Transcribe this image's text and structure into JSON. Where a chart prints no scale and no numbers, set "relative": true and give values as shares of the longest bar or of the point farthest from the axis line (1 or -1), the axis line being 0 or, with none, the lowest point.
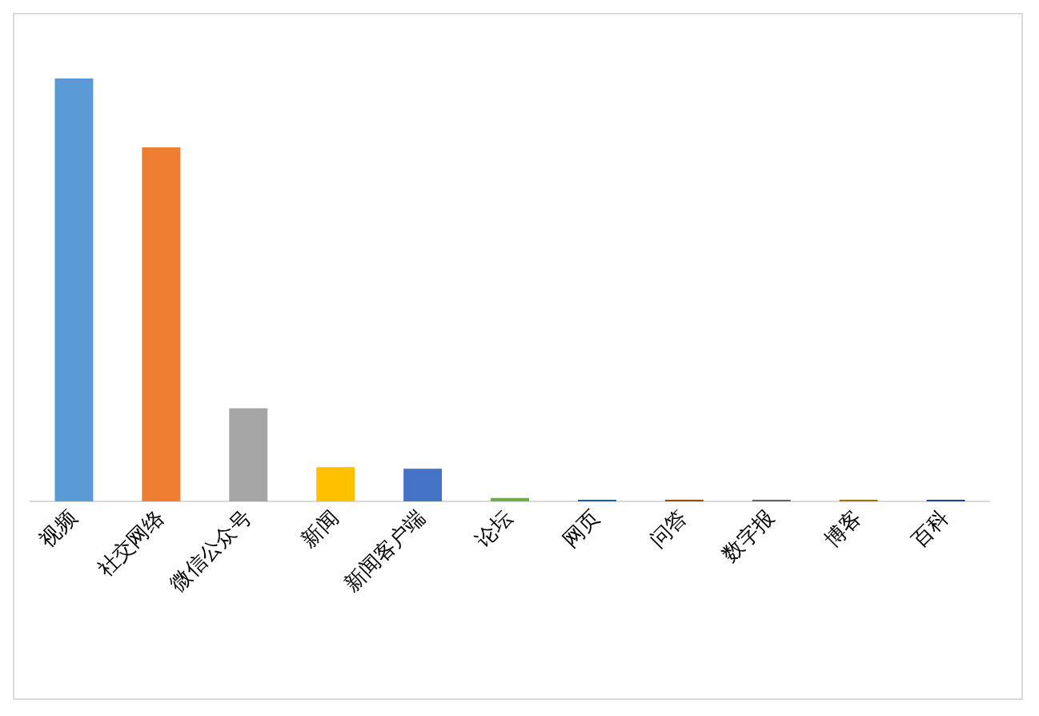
{
  "chart_data": {
    "type": "bar",
    "relative": true,
    "grid": false,
    "legend": false,
    "categories": [
      "视频",
      "社交网络",
      "微信公众号",
      "新闻",
      "新闻客户端",
      "论坛",
      "网页",
      "问答",
      "数字报",
      "博客",
      "百科"
    ],
    "values": [
      1,
      0.837,
      0.22,
      0.081,
      0.077,
      0.008,
      0.004,
      0.004,
      0.004,
      0.004,
      0.004
    ],
    "colors": [
      "#5b9bd5",
      "#ed7d31",
      "#a5a5a5",
      "#ffc000",
      "#4472c4",
      "#70ad47",
      "#255e91",
      "#9e480e",
      "#636363",
      "#997300",
      "#264478"
    ]
  }
}
